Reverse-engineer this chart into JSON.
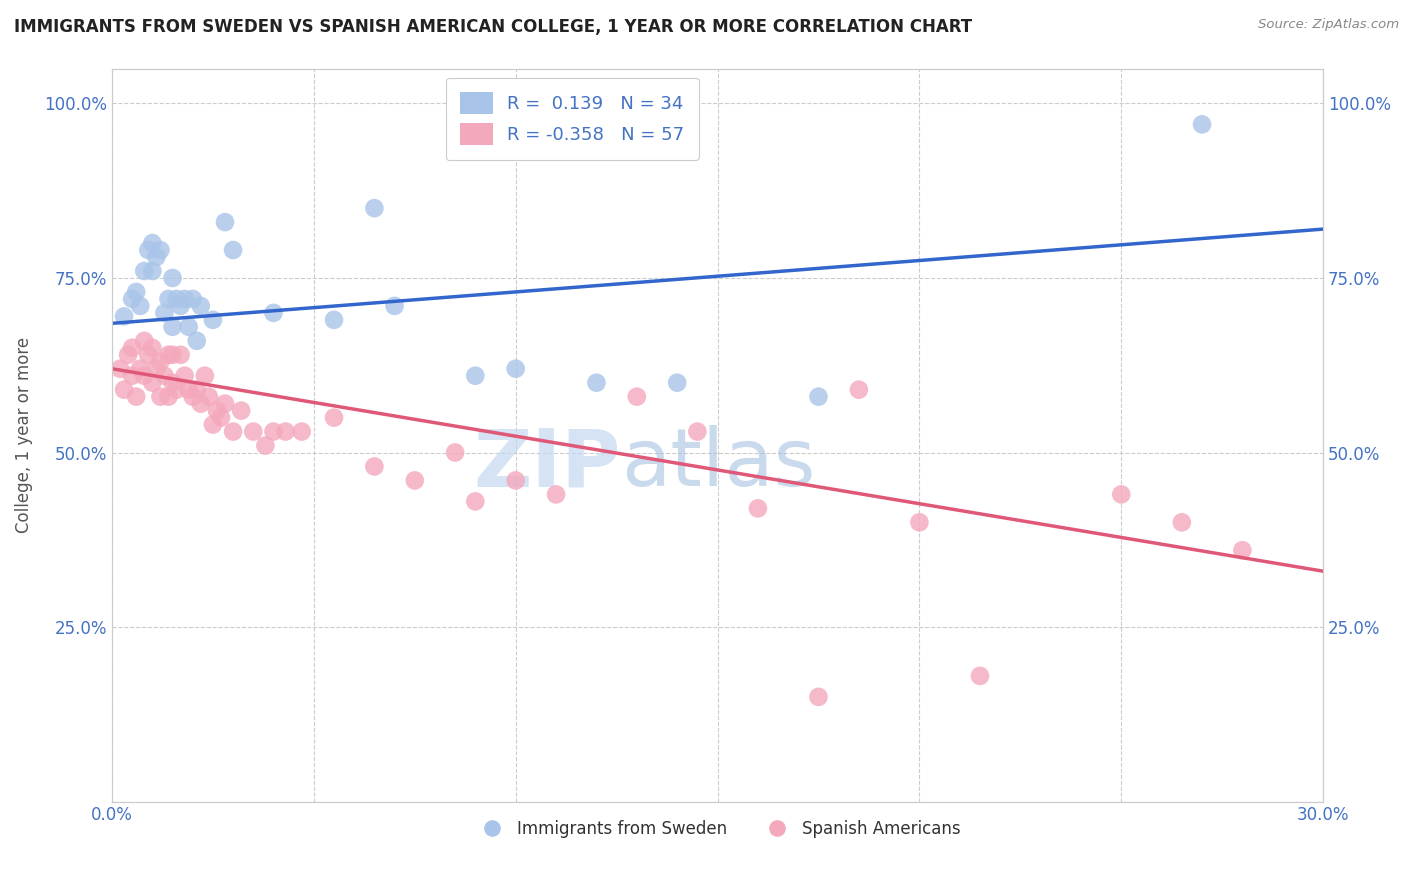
{
  "title": "IMMIGRANTS FROM SWEDEN VS SPANISH AMERICAN COLLEGE, 1 YEAR OR MORE CORRELATION CHART",
  "source": "Source: ZipAtlas.com",
  "ylabel": "College, 1 year or more",
  "xlim": [
    0.0,
    0.3
  ],
  "ylim": [
    0.0,
    1.05
  ],
  "x_ticks": [
    0.0,
    0.05,
    0.1,
    0.15,
    0.2,
    0.25,
    0.3
  ],
  "y_ticks": [
    0.0,
    0.25,
    0.5,
    0.75,
    1.0
  ],
  "blue_r": "0.139",
  "blue_n": "34",
  "pink_r": "-0.358",
  "pink_n": "57",
  "blue_color": "#a8c4e8",
  "pink_color": "#f4a8bc",
  "blue_line_color": "#3366cc",
  "pink_line_color": "#e05878",
  "watermark_zip": "ZIP",
  "watermark_atlas": "atlas",
  "legend_labels": [
    "Immigrants from Sweden",
    "Spanish Americans"
  ],
  "blue_scatter_x": [
    0.003,
    0.005,
    0.006,
    0.007,
    0.008,
    0.009,
    0.01,
    0.01,
    0.011,
    0.012,
    0.013,
    0.014,
    0.015,
    0.015,
    0.016,
    0.017,
    0.018,
    0.019,
    0.02,
    0.021,
    0.022,
    0.025,
    0.028,
    0.03,
    0.04,
    0.055,
    0.065,
    0.07,
    0.09,
    0.1,
    0.12,
    0.14,
    0.175,
    0.27
  ],
  "blue_scatter_y": [
    0.695,
    0.72,
    0.73,
    0.71,
    0.76,
    0.79,
    0.8,
    0.76,
    0.78,
    0.79,
    0.7,
    0.72,
    0.75,
    0.68,
    0.72,
    0.71,
    0.72,
    0.68,
    0.72,
    0.66,
    0.71,
    0.69,
    0.83,
    0.79,
    0.7,
    0.69,
    0.85,
    0.71,
    0.61,
    0.62,
    0.6,
    0.6,
    0.58,
    0.97
  ],
  "pink_scatter_x": [
    0.002,
    0.003,
    0.004,
    0.005,
    0.005,
    0.006,
    0.007,
    0.008,
    0.008,
    0.009,
    0.01,
    0.01,
    0.011,
    0.012,
    0.012,
    0.013,
    0.014,
    0.014,
    0.015,
    0.015,
    0.016,
    0.017,
    0.018,
    0.019,
    0.02,
    0.021,
    0.022,
    0.023,
    0.024,
    0.025,
    0.026,
    0.027,
    0.028,
    0.03,
    0.032,
    0.035,
    0.038,
    0.04,
    0.043,
    0.047,
    0.055,
    0.065,
    0.075,
    0.085,
    0.09,
    0.1,
    0.11,
    0.13,
    0.145,
    0.16,
    0.175,
    0.185,
    0.2,
    0.215,
    0.25,
    0.265,
    0.28
  ],
  "pink_scatter_y": [
    0.62,
    0.59,
    0.64,
    0.61,
    0.65,
    0.58,
    0.62,
    0.66,
    0.61,
    0.64,
    0.65,
    0.6,
    0.62,
    0.63,
    0.58,
    0.61,
    0.64,
    0.58,
    0.6,
    0.64,
    0.59,
    0.64,
    0.61,
    0.59,
    0.58,
    0.59,
    0.57,
    0.61,
    0.58,
    0.54,
    0.56,
    0.55,
    0.57,
    0.53,
    0.56,
    0.53,
    0.51,
    0.53,
    0.53,
    0.53,
    0.55,
    0.48,
    0.46,
    0.5,
    0.43,
    0.46,
    0.44,
    0.58,
    0.53,
    0.42,
    0.15,
    0.59,
    0.4,
    0.18,
    0.44,
    0.4,
    0.36
  ]
}
